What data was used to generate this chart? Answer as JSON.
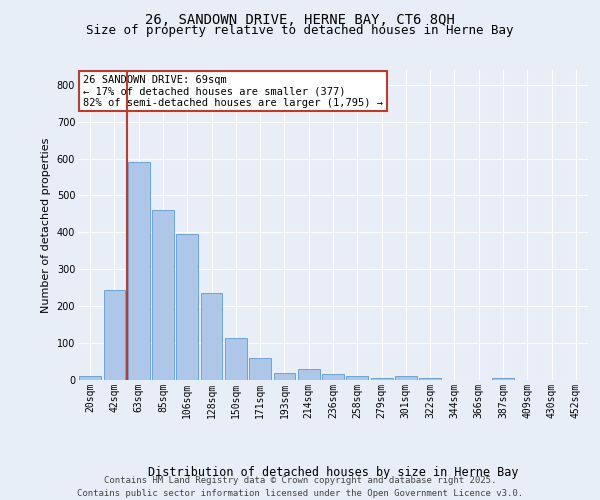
{
  "title_line1": "26, SANDOWN DRIVE, HERNE BAY, CT6 8QH",
  "title_line2": "Size of property relative to detached houses in Herne Bay",
  "xlabel": "Distribution of detached houses by size in Herne Bay",
  "ylabel": "Number of detached properties",
  "footer_line1": "Contains HM Land Registry data © Crown copyright and database right 2025.",
  "footer_line2": "Contains public sector information licensed under the Open Government Licence v3.0.",
  "categories": [
    "20sqm",
    "42sqm",
    "63sqm",
    "85sqm",
    "106sqm",
    "128sqm",
    "150sqm",
    "171sqm",
    "193sqm",
    "214sqm",
    "236sqm",
    "258sqm",
    "279sqm",
    "301sqm",
    "322sqm",
    "344sqm",
    "366sqm",
    "387sqm",
    "409sqm",
    "430sqm",
    "452sqm"
  ],
  "values": [
    10,
    245,
    590,
    460,
    395,
    235,
    115,
    60,
    20,
    30,
    15,
    10,
    5,
    10,
    5,
    0,
    0,
    5,
    0,
    0,
    0
  ],
  "bar_color": "#aec6e8",
  "bar_edge_color": "#5b9bd5",
  "vline_x_index": 2,
  "vline_color": "#c0392b",
  "annotation_text": "26 SANDOWN DRIVE: 69sqm\n← 17% of detached houses are smaller (377)\n82% of semi-detached houses are larger (1,795) →",
  "annotation_box_color": "#c0392b",
  "ylim": [
    0,
    840
  ],
  "yticks": [
    0,
    100,
    200,
    300,
    400,
    500,
    600,
    700,
    800
  ],
  "bg_color": "#e8eef8",
  "plot_bg_color": "#e8eef8",
  "grid_color": "#ffffff",
  "title_fontsize": 10,
  "subtitle_fontsize": 9,
  "ylabel_fontsize": 8,
  "xlabel_fontsize": 8.5,
  "tick_fontsize": 7,
  "footer_fontsize": 6.5,
  "annotation_fontsize": 7.5
}
